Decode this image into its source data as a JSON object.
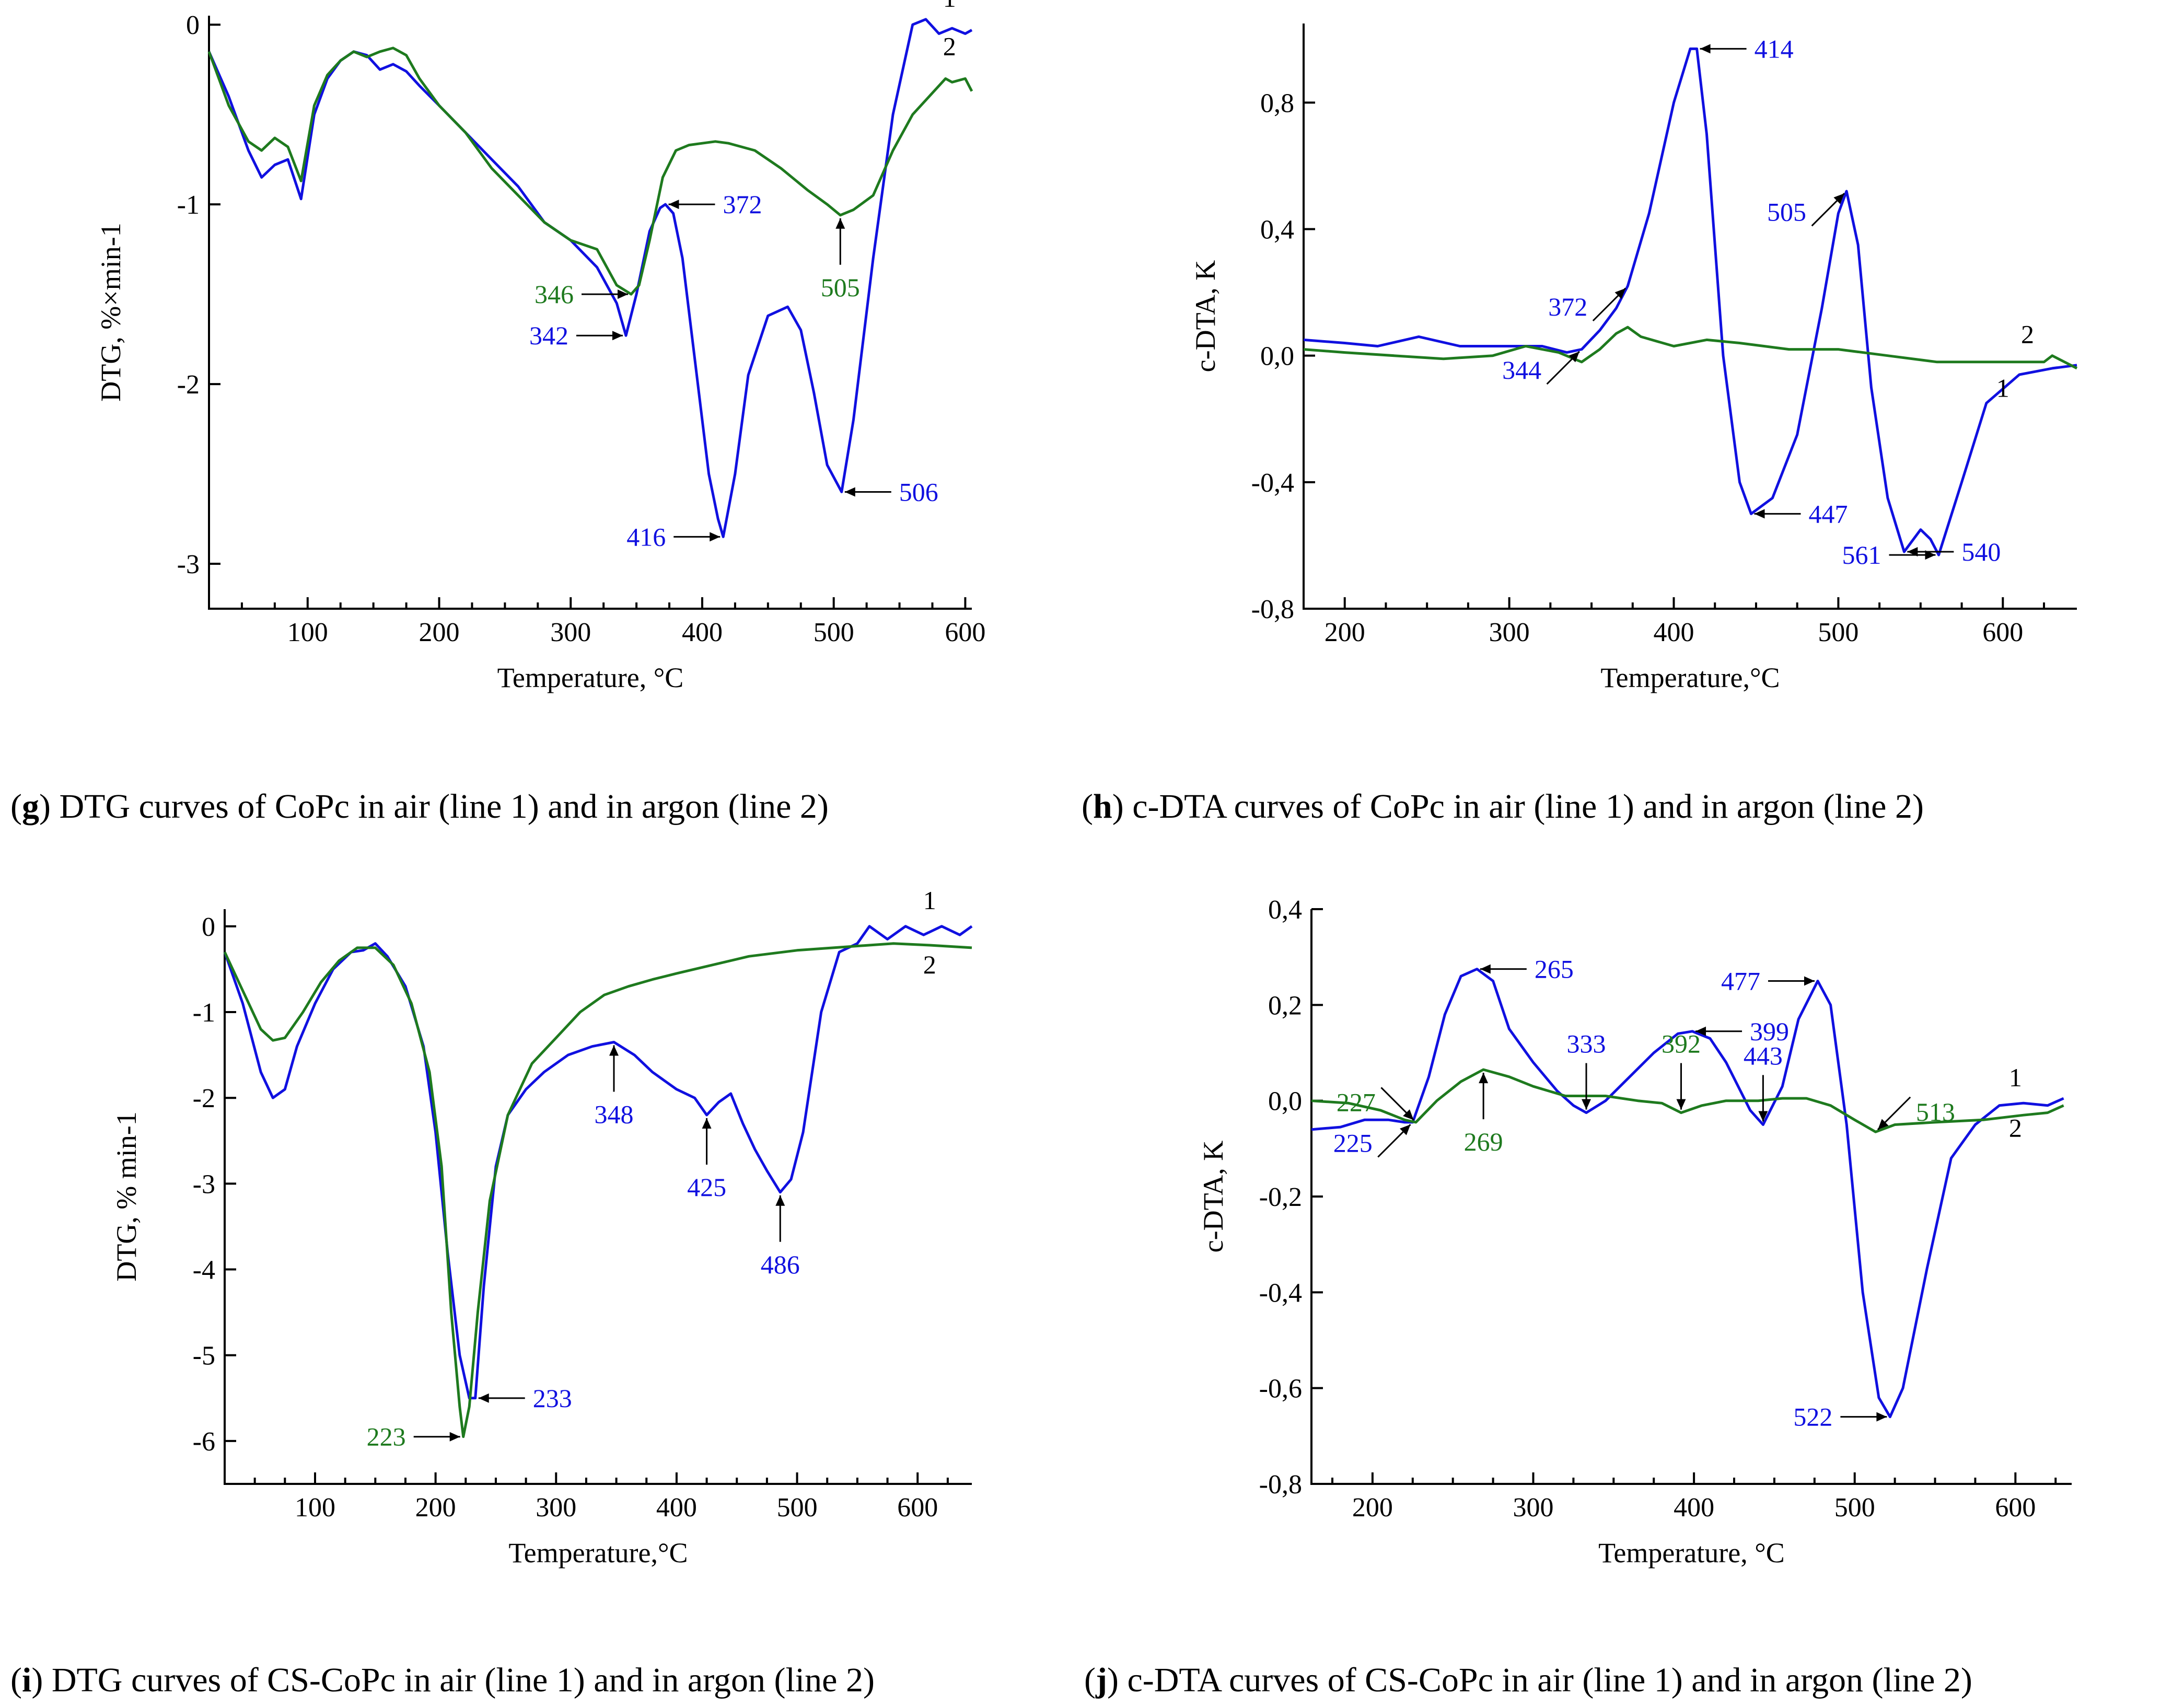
{
  "colors": {
    "line1": "#1010e0",
    "line2": "#1e7a1e",
    "axis": "#000000"
  },
  "chart_data": [
    {
      "id": "g",
      "type": "line",
      "caption": {
        "letter": "g",
        "text": " DTG curves of CoPc in air (line 1) and in argon (line 2)"
      },
      "xlabel": "Temperature, °C",
      "ylabel": "DTG, %×min-1",
      "xlim": [
        25,
        605
      ],
      "ylim": [
        -3.25,
        0.05
      ],
      "xticks": [
        100,
        200,
        300,
        400,
        500,
        600
      ],
      "yticks": [
        0,
        -1,
        -2,
        -3
      ],
      "ytick_labels": [
        "0",
        "-1",
        "-2",
        "-3"
      ],
      "series": [
        {
          "name": "1",
          "color_key": "line1",
          "x": [
            25,
            40,
            55,
            65,
            75,
            85,
            95,
            105,
            115,
            125,
            135,
            145,
            155,
            165,
            175,
            185,
            200,
            220,
            240,
            260,
            280,
            300,
            320,
            335,
            342,
            350,
            360,
            368,
            372,
            378,
            385,
            395,
            405,
            412,
            416,
            425,
            435,
            450,
            465,
            475,
            485,
            495,
            506,
            515,
            530,
            545,
            560,
            570,
            580,
            590,
            600,
            605
          ],
          "y": [
            -0.15,
            -0.4,
            -0.7,
            -0.85,
            -0.78,
            -0.75,
            -0.97,
            -0.5,
            -0.3,
            -0.2,
            -0.15,
            -0.17,
            -0.25,
            -0.22,
            -0.26,
            -0.34,
            -0.45,
            -0.6,
            -0.75,
            -0.9,
            -1.1,
            -1.2,
            -1.35,
            -1.55,
            -1.73,
            -1.5,
            -1.15,
            -1.02,
            -1.0,
            -1.05,
            -1.3,
            -1.9,
            -2.5,
            -2.75,
            -2.85,
            -2.5,
            -1.95,
            -1.62,
            -1.57,
            -1.7,
            -2.05,
            -2.45,
            -2.6,
            -2.2,
            -1.3,
            -0.5,
            0.0,
            0.03,
            -0.05,
            -0.02,
            -0.05,
            -0.03
          ]
        },
        {
          "name": "2",
          "color_key": "line2",
          "x": [
            25,
            40,
            55,
            65,
            75,
            85,
            95,
            105,
            115,
            125,
            135,
            145,
            155,
            165,
            175,
            185,
            200,
            220,
            240,
            260,
            280,
            300,
            320,
            335,
            346,
            352,
            360,
            370,
            380,
            390,
            400,
            410,
            420,
            440,
            460,
            480,
            495,
            505,
            515,
            530,
            545,
            560,
            575,
            585,
            590,
            600,
            605
          ],
          "y": [
            -0.15,
            -0.45,
            -0.65,
            -0.7,
            -0.63,
            -0.68,
            -0.87,
            -0.45,
            -0.28,
            -0.2,
            -0.15,
            -0.18,
            -0.15,
            -0.13,
            -0.17,
            -0.3,
            -0.45,
            -0.6,
            -0.8,
            -0.95,
            -1.1,
            -1.2,
            -1.25,
            -1.45,
            -1.5,
            -1.45,
            -1.2,
            -0.85,
            -0.7,
            -0.67,
            -0.66,
            -0.65,
            -0.66,
            -0.7,
            -0.8,
            -0.92,
            -1.0,
            -1.06,
            -1.03,
            -0.95,
            -0.7,
            -0.5,
            -0.38,
            -0.3,
            -0.32,
            -0.3,
            -0.37
          ]
        }
      ],
      "annotations": [
        {
          "text": "346",
          "series": 2,
          "x": 346,
          "y": -1.5,
          "dir": "right"
        },
        {
          "text": "342",
          "series": 1,
          "x": 342,
          "y": -1.73,
          "dir": "right"
        },
        {
          "text": "372",
          "series": 1,
          "x": 372,
          "y": -1.0,
          "dir": "left"
        },
        {
          "text": "505",
          "series": 2,
          "x": 505,
          "y": -1.06,
          "dir": "up"
        },
        {
          "text": "416",
          "series": 1,
          "x": 416,
          "y": -2.85,
          "dir": "right"
        },
        {
          "text": "506",
          "series": 1,
          "x": 506,
          "y": -2.6,
          "dir": "left"
        }
      ],
      "line_labels": [
        {
          "text": "1",
          "x": 588,
          "y": 0.1
        },
        {
          "text": "2",
          "x": 588,
          "y": -0.17
        }
      ]
    },
    {
      "id": "h",
      "type": "line",
      "caption": {
        "letter": "h",
        "text": " c-DTA curves of CoPc in air (line 1) and in argon (line 2)"
      },
      "xlabel": "Temperature,°C",
      "ylabel": "c-DTA, K",
      "xlim": [
        175,
        645
      ],
      "ylim": [
        -0.8,
        1.05
      ],
      "xticks": [
        200,
        300,
        400,
        500,
        600
      ],
      "yticks": [
        0.8,
        0.4,
        0.0,
        -0.4,
        -0.8
      ],
      "ytick_labels": [
        "0,8",
        "0,4",
        "0,0",
        "-0,4",
        "-0,8"
      ],
      "series": [
        {
          "name": "1",
          "color_key": "line1",
          "x": [
            175,
            200,
            220,
            245,
            270,
            300,
            320,
            335,
            344,
            355,
            365,
            372,
            385,
            400,
            410,
            414,
            420,
            430,
            440,
            447,
            460,
            475,
            490,
            500,
            505,
            512,
            520,
            530,
            540,
            550,
            556,
            561,
            575,
            590,
            610,
            630,
            645
          ],
          "y": [
            0.05,
            0.04,
            0.03,
            0.06,
            0.03,
            0.03,
            0.03,
            0.01,
            0.02,
            0.08,
            0.15,
            0.22,
            0.45,
            0.8,
            0.97,
            0.97,
            0.7,
            0.0,
            -0.4,
            -0.5,
            -0.45,
            -0.25,
            0.15,
            0.45,
            0.52,
            0.35,
            -0.1,
            -0.45,
            -0.62,
            -0.55,
            -0.58,
            -0.63,
            -0.4,
            -0.15,
            -0.06,
            -0.04,
            -0.03
          ]
        },
        {
          "name": "2",
          "color_key": "line2",
          "x": [
            175,
            200,
            230,
            260,
            290,
            310,
            330,
            344,
            355,
            365,
            372,
            380,
            400,
            420,
            440,
            470,
            500,
            530,
            560,
            600,
            625,
            630,
            645
          ],
          "y": [
            0.02,
            0.01,
            0.0,
            -0.01,
            0.0,
            0.03,
            0.01,
            -0.02,
            0.02,
            0.07,
            0.09,
            0.06,
            0.03,
            0.05,
            0.04,
            0.02,
            0.02,
            0.0,
            -0.02,
            -0.02,
            -0.02,
            0.0,
            -0.04
          ]
        }
      ],
      "annotations": [
        {
          "text": "414",
          "series": 1,
          "x": 414,
          "y": 0.97,
          "dir": "left"
        },
        {
          "text": "505",
          "series": 1,
          "x": 505,
          "y": 0.52,
          "dir": "upleft"
        },
        {
          "text": "372",
          "series": 1,
          "x": 372,
          "y": 0.22,
          "dir": "upleft"
        },
        {
          "text": "344",
          "series": 1,
          "x": 344,
          "y": 0.02,
          "dir": "upleft"
        },
        {
          "text": "447",
          "series": 1,
          "x": 447,
          "y": -0.5,
          "dir": "left"
        },
        {
          "text": "540",
          "series": 1,
          "x": 540,
          "y": -0.62,
          "dir": "left"
        },
        {
          "text": "561",
          "series": 1,
          "x": 561,
          "y": -0.63,
          "dir": "right"
        }
      ],
      "line_labels": [
        {
          "text": "2",
          "x": 615,
          "y": 0.04
        },
        {
          "text": "1",
          "x": 600,
          "y": -0.13
        }
      ]
    },
    {
      "id": "i",
      "type": "line",
      "caption": {
        "letter": "i",
        "text": " DTG curves of CS-CoPc in air (line 1) and in argon (line 2)"
      },
      "xlabel": "Temperature,°C",
      "ylabel": "DTG, % min-1",
      "xlim": [
        25,
        645
      ],
      "ylim": [
        -6.5,
        0.2
      ],
      "xticks": [
        100,
        200,
        300,
        400,
        500,
        600
      ],
      "yticks": [
        0,
        -1,
        -2,
        -3,
        -4,
        -5,
        -6
      ],
      "ytick_labels": [
        "0",
        "-1",
        "-2",
        "-3",
        "-4",
        "-5",
        "-6"
      ],
      "series": [
        {
          "name": "1",
          "color_key": "line1",
          "x": [
            25,
            40,
            55,
            65,
            75,
            85,
            100,
            115,
            130,
            140,
            150,
            160,
            175,
            190,
            200,
            210,
            220,
            228,
            233,
            240,
            250,
            260,
            275,
            290,
            310,
            330,
            348,
            365,
            380,
            400,
            415,
            425,
            435,
            445,
            455,
            465,
            475,
            486,
            495,
            505,
            520,
            535,
            550,
            560,
            575,
            590,
            605,
            620,
            635,
            645
          ],
          "y": [
            -0.3,
            -0.9,
            -1.7,
            -2.0,
            -1.9,
            -1.4,
            -0.9,
            -0.5,
            -0.3,
            -0.28,
            -0.2,
            -0.35,
            -0.7,
            -1.4,
            -2.4,
            -3.8,
            -5.0,
            -5.5,
            -5.5,
            -4.2,
            -2.8,
            -2.2,
            -1.9,
            -1.7,
            -1.5,
            -1.4,
            -1.35,
            -1.5,
            -1.7,
            -1.9,
            -2.0,
            -2.2,
            -2.05,
            -1.95,
            -2.3,
            -2.6,
            -2.85,
            -3.1,
            -2.95,
            -2.4,
            -1.0,
            -0.3,
            -0.2,
            0.0,
            -0.15,
            0.0,
            -0.1,
            0.0,
            -0.1,
            0.0
          ]
        },
        {
          "name": "2",
          "color_key": "line2",
          "x": [
            25,
            40,
            55,
            65,
            75,
            90,
            105,
            120,
            135,
            150,
            165,
            180,
            195,
            205,
            213,
            220,
            223,
            228,
            235,
            245,
            260,
            280,
            300,
            320,
            340,
            360,
            380,
            400,
            430,
            460,
            500,
            540,
            580,
            610,
            645
          ],
          "y": [
            -0.3,
            -0.75,
            -1.2,
            -1.33,
            -1.3,
            -1.0,
            -0.65,
            -0.4,
            -0.25,
            -0.25,
            -0.45,
            -0.9,
            -1.7,
            -2.8,
            -4.5,
            -5.6,
            -5.95,
            -5.6,
            -4.5,
            -3.2,
            -2.2,
            -1.6,
            -1.3,
            -1.0,
            -0.8,
            -0.7,
            -0.62,
            -0.55,
            -0.45,
            -0.35,
            -0.28,
            -0.24,
            -0.2,
            -0.22,
            -0.25
          ]
        }
      ],
      "annotations": [
        {
          "text": "348",
          "series": 1,
          "x": 348,
          "y": -1.35,
          "dir": "up"
        },
        {
          "text": "425",
          "series": 1,
          "x": 425,
          "y": -2.2,
          "dir": "up"
        },
        {
          "text": "486",
          "series": 1,
          "x": 486,
          "y": -3.1,
          "dir": "up"
        },
        {
          "text": "233",
          "series": 1,
          "x": 233,
          "y": -5.5,
          "dir": "left"
        },
        {
          "text": "223",
          "series": 2,
          "x": 223,
          "y": -5.95,
          "dir": "right"
        }
      ],
      "line_labels": [
        {
          "text": "1",
          "x": 610,
          "y": 0.2
        },
        {
          "text": "2",
          "x": 610,
          "y": -0.55
        }
      ]
    },
    {
      "id": "j",
      "type": "line",
      "caption": {
        "letter": "j",
        "text": " c-DTA curves of CS-CoPc in air (line 1) and in argon (line 2)"
      },
      "xlabel": "Temperature, °C",
      "ylabel": "c-DTA, K",
      "xlim": [
        162,
        635
      ],
      "ylim": [
        -0.8,
        0.4
      ],
      "xticks": [
        200,
        300,
        400,
        500,
        600
      ],
      "yticks": [
        0.4,
        0.2,
        0.0,
        -0.2,
        -0.4,
        -0.6,
        -0.8
      ],
      "ytick_labels": [
        "0,4",
        "0,2",
        "0,0",
        "-0,2",
        "-0,4",
        "-0,6",
        "-0,8"
      ],
      "series": [
        {
          "name": "1",
          "color_key": "line1",
          "x": [
            162,
            180,
            195,
            210,
            220,
            225,
            235,
            245,
            255,
            265,
            275,
            285,
            300,
            315,
            325,
            333,
            345,
            360,
            375,
            390,
            399,
            410,
            420,
            435,
            443,
            455,
            465,
            477,
            485,
            495,
            505,
            515,
            522,
            530,
            545,
            560,
            575,
            590,
            605,
            620,
            630
          ],
          "y": [
            -0.06,
            -0.055,
            -0.04,
            -0.04,
            -0.045,
            -0.045,
            0.05,
            0.18,
            0.26,
            0.275,
            0.25,
            0.15,
            0.08,
            0.02,
            -0.01,
            -0.025,
            0.0,
            0.05,
            0.1,
            0.14,
            0.145,
            0.13,
            0.08,
            -0.02,
            -0.05,
            0.03,
            0.17,
            0.25,
            0.2,
            -0.05,
            -0.4,
            -0.62,
            -0.66,
            -0.6,
            -0.35,
            -0.12,
            -0.05,
            -0.01,
            -0.005,
            -0.01,
            0.005
          ]
        },
        {
          "name": "2",
          "color_key": "line2",
          "x": [
            162,
            185,
            205,
            220,
            227,
            240,
            255,
            269,
            285,
            300,
            320,
            345,
            365,
            380,
            392,
            405,
            420,
            440,
            455,
            470,
            485,
            500,
            513,
            525,
            550,
            580,
            605,
            620,
            630
          ],
          "y": [
            0.0,
            -0.005,
            -0.02,
            -0.04,
            -0.045,
            0.0,
            0.04,
            0.065,
            0.05,
            0.03,
            0.01,
            0.01,
            0.0,
            -0.005,
            -0.025,
            -0.01,
            0.0,
            0.0,
            0.005,
            0.005,
            -0.01,
            -0.04,
            -0.065,
            -0.05,
            -0.045,
            -0.04,
            -0.03,
            -0.025,
            -0.01
          ]
        }
      ],
      "annotations": [
        {
          "text": "225",
          "series": 1,
          "x": 225,
          "y": -0.045,
          "dir": "upleft"
        },
        {
          "text": "227",
          "series": 2,
          "x": 227,
          "y": -0.045,
          "dir": "downleft"
        },
        {
          "text": "265",
          "series": 1,
          "x": 265,
          "y": 0.275,
          "dir": "left"
        },
        {
          "text": "269",
          "series": 2,
          "x": 269,
          "y": 0.065,
          "dir": "up"
        },
        {
          "text": "333",
          "series": 1,
          "x": 333,
          "y": -0.025,
          "dir": "down"
        },
        {
          "text": "392",
          "series": 2,
          "x": 392,
          "y": -0.025,
          "dir": "down"
        },
        {
          "text": "399",
          "series": 1,
          "x": 399,
          "y": 0.145,
          "dir": "left"
        },
        {
          "text": "443",
          "series": 1,
          "x": 443,
          "y": -0.05,
          "dir": "down"
        },
        {
          "text": "477",
          "series": 1,
          "x": 477,
          "y": 0.25,
          "dir": "right"
        },
        {
          "text": "513",
          "series": 2,
          "x": 513,
          "y": -0.065,
          "dir": "downright"
        },
        {
          "text": "522",
          "series": 1,
          "x": 522,
          "y": -0.66,
          "dir": "right"
        }
      ],
      "line_labels": [
        {
          "text": "1",
          "x": 600,
          "y": 0.03
        },
        {
          "text": "2",
          "x": 600,
          "y": -0.075
        }
      ]
    }
  ]
}
